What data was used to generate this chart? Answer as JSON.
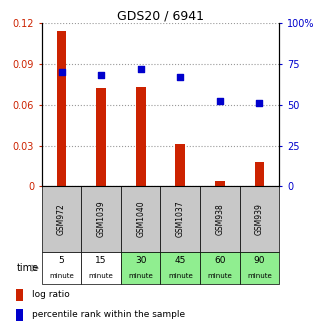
{
  "title": "GDS20 / 6941",
  "samples": [
    "GSM972",
    "GSM1039",
    "GSM1040",
    "GSM1037",
    "GSM938",
    "GSM939"
  ],
  "time_nums": [
    "5",
    "15",
    "30",
    "45",
    "60",
    "90"
  ],
  "time_bg": [
    "#ffffff",
    "#ffffff",
    "#90ee90",
    "#90ee90",
    "#90ee90",
    "#90ee90"
  ],
  "log_ratio": [
    0.114,
    0.072,
    0.073,
    0.031,
    0.004,
    0.018
  ],
  "percentile_rank": [
    70,
    68,
    72,
    67,
    52,
    51
  ],
  "bar_color": "#cc2200",
  "dot_color": "#0000cc",
  "ylim_left": [
    0,
    0.12
  ],
  "ylim_right": [
    0,
    100
  ],
  "yticks_left": [
    0,
    0.03,
    0.06,
    0.09,
    0.12
  ],
  "yticks_right": [
    0,
    25,
    50,
    75,
    100
  ],
  "ytick_labels_left": [
    "0",
    "0.03",
    "0.06",
    "0.09",
    "0.12"
  ],
  "ytick_labels_right": [
    "0",
    "25",
    "50",
    "75",
    "100%"
  ],
  "grid_color": "#999999",
  "bg_color": "white",
  "legend_log_ratio": "log ratio",
  "legend_percentile": "percentile rank within the sample",
  "sample_bg": "#c8c8c8",
  "bar_width": 0.25,
  "dot_size": 22
}
